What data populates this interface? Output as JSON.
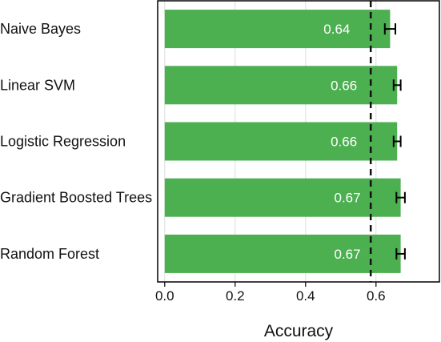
{
  "chart_data": {
    "type": "bar",
    "orientation": "horizontal",
    "title": "",
    "xlabel": "Accuracy",
    "ylabel": "",
    "categories": [
      "Naive Bayes",
      "Linear SVM",
      "Logistic Regression",
      "Gradient Boosted Trees",
      "Random Forest"
    ],
    "values": [
      0.64,
      0.66,
      0.66,
      0.67,
      0.67
    ],
    "value_labels": [
      "0.64",
      "0.66",
      "0.66",
      "0.67",
      "0.67"
    ],
    "error": [
      0.015,
      0.01,
      0.01,
      0.012,
      0.012
    ],
    "xlim": [
      -0.02,
      0.78
    ],
    "xticks": [
      0.0,
      0.2,
      0.4,
      0.6
    ],
    "xtick_labels": [
      "0.0",
      "0.2",
      "0.4",
      "0.6"
    ],
    "reference_line": 0.585,
    "bar_color": "#4caf50",
    "grid": true,
    "legend": "none"
  }
}
